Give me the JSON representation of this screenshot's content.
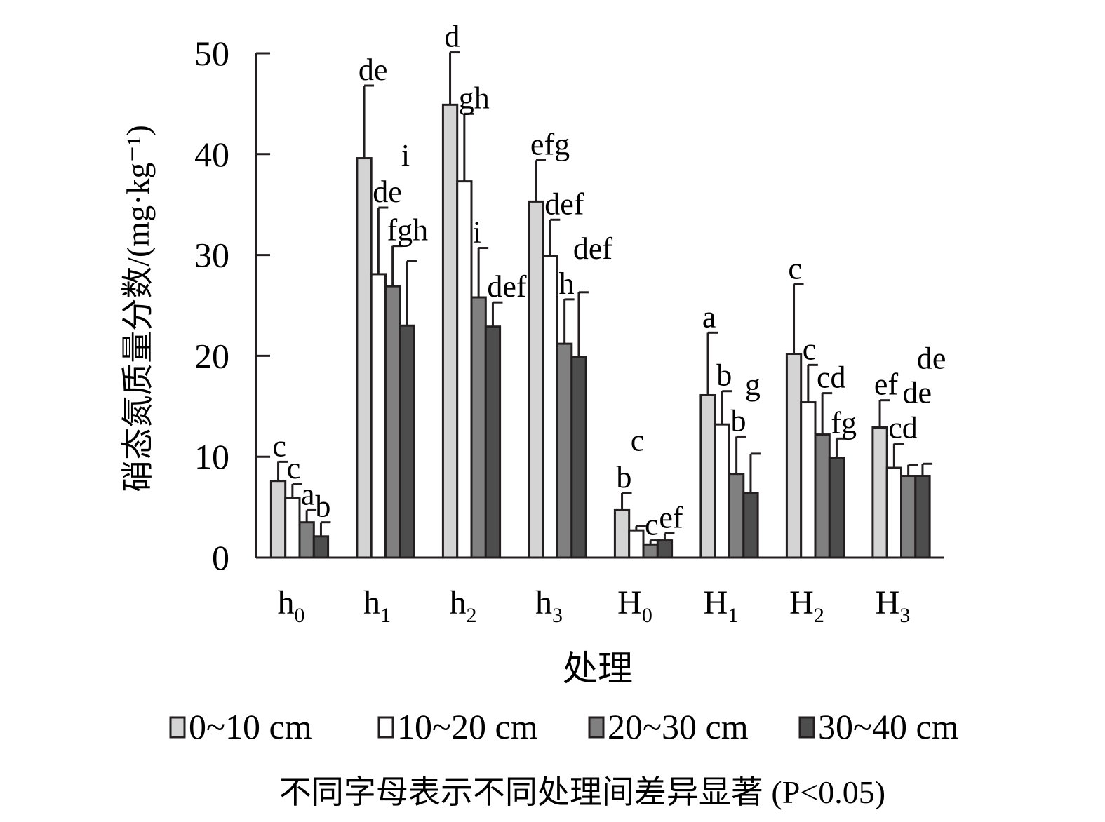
{
  "chart_data": {
    "type": "bar",
    "title": "",
    "xlabel": "处理",
    "ylabel": "硝态氮质量分数/(mg·kg⁻¹)",
    "ylim": [
      0,
      50
    ],
    "yticks": [
      "0",
      "10",
      "20",
      "30",
      "40",
      "50"
    ],
    "categories": [
      {
        "base": "h",
        "sub": "0"
      },
      {
        "base": "h",
        "sub": "1"
      },
      {
        "base": "h",
        "sub": "2"
      },
      {
        "base": "h",
        "sub": "3"
      },
      {
        "base": "H",
        "sub": "0"
      },
      {
        "base": "H",
        "sub": "1"
      },
      {
        "base": "H",
        "sub": "2"
      },
      {
        "base": "H",
        "sub": "3"
      }
    ],
    "series": [
      {
        "name": "0~10 cm",
        "color": "#d4d4d4",
        "values": [
          7.6,
          39.6,
          44.9,
          35.3,
          4.7,
          16.1,
          20.2,
          12.9
        ],
        "errors": [
          1.9,
          7.2,
          5.2,
          4.1,
          1.7,
          6.2,
          6.9,
          2.7
        ],
        "letters": [
          "c",
          "de",
          "d",
          "efg",
          "b",
          "a",
          "c",
          "ef"
        ]
      },
      {
        "name": "10~20 cm",
        "color": "#ffffff",
        "values": [
          5.9,
          28.1,
          37.3,
          29.9,
          2.7,
          13.2,
          15.4,
          8.9
        ],
        "errors": [
          1.4,
          6.6,
          6.7,
          3.6,
          0.4,
          3.3,
          3.7,
          2.4
        ],
        "letters": [
          "c",
          "de",
          "gh",
          "def",
          "c",
          "b",
          "c",
          "cd"
        ]
      },
      {
        "name": "20~30 cm",
        "color": "#808080",
        "values": [
          3.5,
          26.9,
          25.8,
          21.2,
          1.3,
          8.3,
          12.2,
          8.1
        ],
        "errors": [
          1.2,
          4.0,
          4.9,
          4.4,
          0.4,
          3.7,
          4.1,
          1.1
        ],
        "letters": [
          "a",
          "fgh",
          "i",
          "h",
          "c",
          "b",
          "cd",
          "de"
        ]
      },
      {
        "name": "30~40 cm",
        "color": "#4d4d4d",
        "values": [
          2.1,
          23.0,
          22.9,
          19.9,
          1.7,
          6.4,
          9.9,
          8.1
        ],
        "errors": [
          1.4,
          6.4,
          2.4,
          6.4,
          0.7,
          3.9,
          1.9,
          1.2
        ],
        "letters": [
          "b",
          "i",
          "def",
          "def",
          "ef",
          "g",
          "fg",
          "de"
        ]
      }
    ],
    "note": "不同字母表示不同处理间差异显著 (P<0.05)",
    "legend_position": "bottom"
  }
}
